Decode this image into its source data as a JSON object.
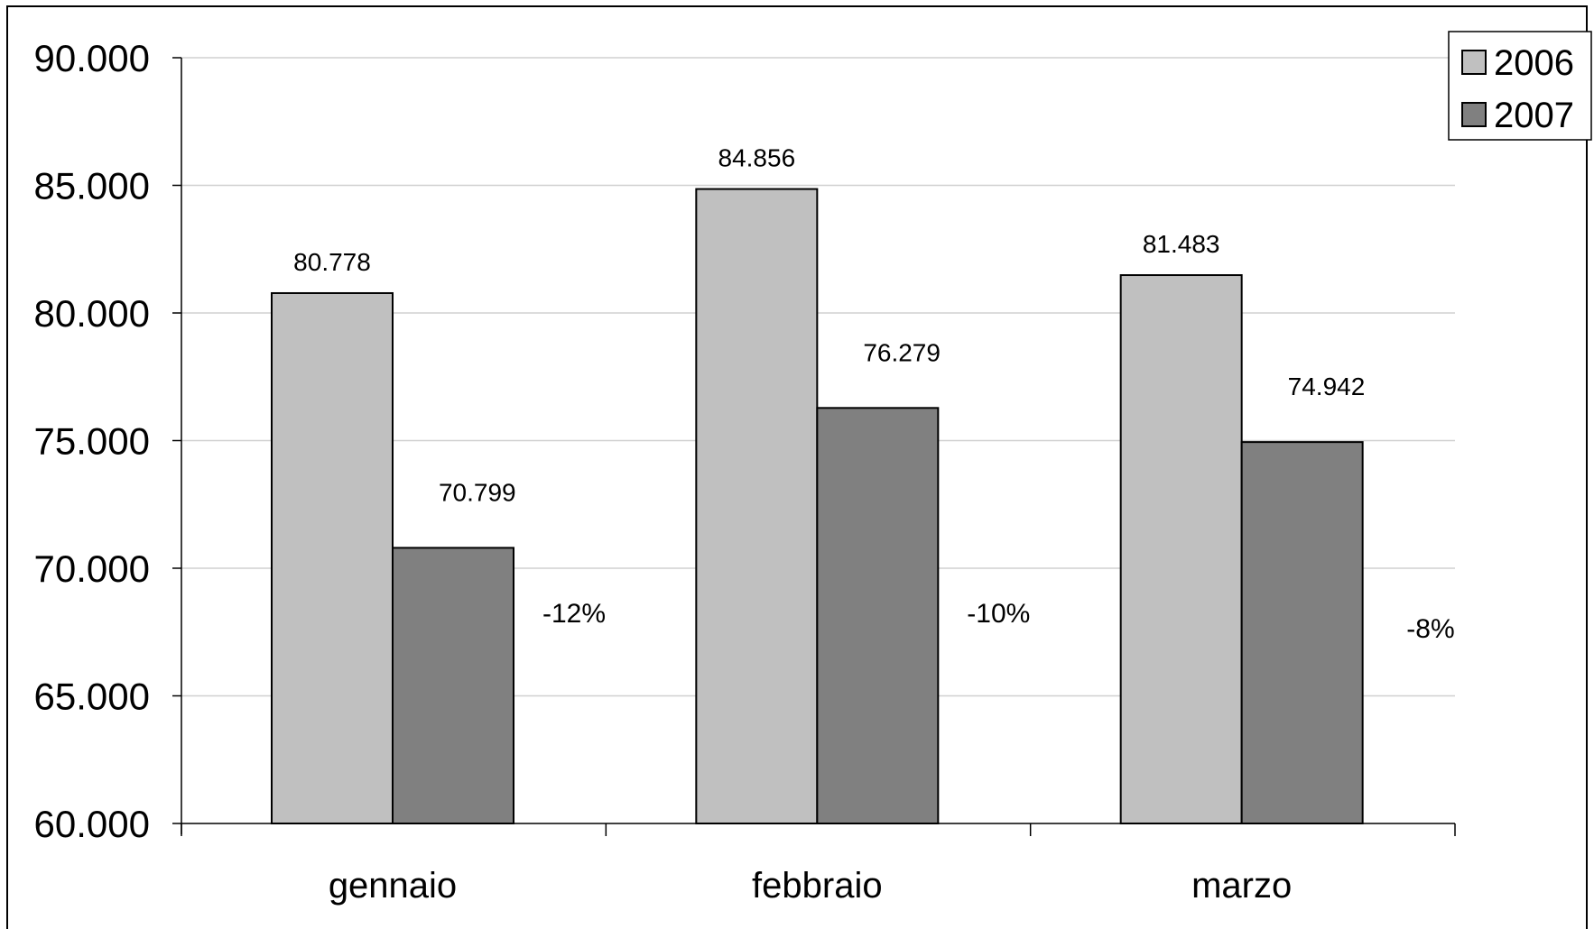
{
  "chart_data": {
    "type": "bar",
    "title": "",
    "xlabel": "",
    "ylabel": "",
    "categories": [
      "gennaio",
      "febbraio",
      "marzo"
    ],
    "series": [
      {
        "name": "2006",
        "values": [
          80778,
          84856,
          81483
        ],
        "labels": [
          "80.778",
          "84.856",
          "81.483"
        ],
        "color": "#c0c0c0"
      },
      {
        "name": "2007",
        "values": [
          70799,
          76279,
          74942
        ],
        "labels": [
          "70.799",
          "76.279",
          "74.942"
        ],
        "color": "#808080"
      }
    ],
    "annotations": [
      "-12%",
      "-10%",
      "-8%"
    ],
    "ylim": [
      60000,
      90000
    ],
    "yticks": [
      60000,
      65000,
      70000,
      75000,
      80000,
      85000,
      90000
    ],
    "ytick_labels": [
      "60.000",
      "65.000",
      "70.000",
      "75.000",
      "80.000",
      "85.000",
      "90.000"
    ],
    "grid": true,
    "legend": "top-right"
  }
}
